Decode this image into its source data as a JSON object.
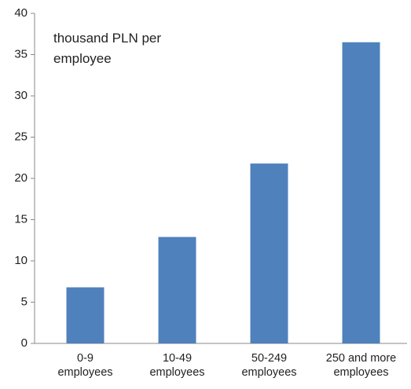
{
  "chart_data": {
    "type": "bar",
    "annotation": "thousand PLN per\nemployee",
    "categories": [
      "0-9\nemployees",
      "10-49\nemployees",
      "50-249\nemployees",
      "250 and more\nemployees"
    ],
    "values": [
      6.8,
      12.9,
      21.8,
      36.5
    ],
    "color": "#4f81bd",
    "ylim": [
      0,
      40
    ],
    "yticks": [
      0,
      5,
      10,
      15,
      20,
      25,
      30,
      35,
      40
    ]
  }
}
